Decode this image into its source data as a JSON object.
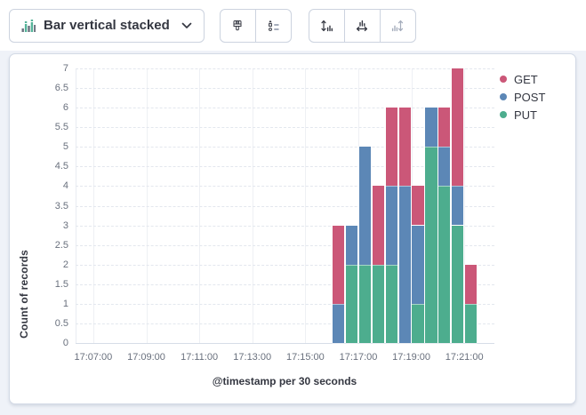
{
  "toolbar": {
    "chart_type_label": "Bar vertical stacked",
    "icons": {
      "switcher": "bar-vertical-stacked-icon",
      "chevron": "chevron-down-icon",
      "group1": [
        "paintbrush-icon",
        "legend-list-icon"
      ],
      "group2": [
        "left-axis-icon",
        "bottom-axis-icon",
        "right-axis-icon"
      ]
    }
  },
  "colors": {
    "get": "#cb5778",
    "post": "#5c87b6",
    "put": "#4dad8e",
    "icon_green": "#54b399",
    "icon_gray": "#69707d",
    "disabled_icon": "#a5adbc",
    "border": "#d3dae6",
    "tick_text": "#69707d",
    "title_text": "#343741"
  },
  "chart_data": {
    "type": "bar",
    "stacked": true,
    "orientation": "vertical",
    "title": "",
    "xlabel": "@timestamp per 30 seconds",
    "ylabel": "Count of records",
    "ylim": [
      0,
      7
    ],
    "grid": true,
    "legend_position": "right",
    "bucket_seconds": 30,
    "x": [
      "17:16:00",
      "17:16:30",
      "17:17:00",
      "17:17:30",
      "17:18:00",
      "17:18:30",
      "17:19:00",
      "17:19:30",
      "17:20:00",
      "17:20:30",
      "17:21:00"
    ],
    "series": [
      {
        "name": "GET",
        "color": "#cb5778",
        "values": [
          2,
          0,
          0,
          2,
          2,
          2,
          1,
          0,
          1,
          3,
          1
        ]
      },
      {
        "name": "POST",
        "color": "#5c87b6",
        "values": [
          1,
          1,
          3,
          0,
          2,
          4,
          2,
          1,
          1,
          1,
          0
        ]
      },
      {
        "name": "PUT",
        "color": "#4dad8e",
        "values": [
          0,
          2,
          2,
          2,
          2,
          0,
          1,
          5,
          4,
          3,
          1
        ]
      }
    ],
    "stack_order_bottom_to_top": [
      "PUT",
      "POST",
      "GET"
    ],
    "totals": [
      3,
      3,
      5,
      4,
      6,
      6,
      4,
      6,
      6,
      7,
      2
    ],
    "x_ticks": [
      "17:07:00",
      "17:09:00",
      "17:11:00",
      "17:13:00",
      "17:15:00",
      "17:17:00",
      "17:19:00",
      "17:21:00"
    ],
    "y_ticks": [
      "0",
      "0.5",
      "1",
      "1.5",
      "2",
      "2.5",
      "3",
      "3.5",
      "4",
      "4.5",
      "5",
      "5.5",
      "6",
      "6.5",
      "7"
    ]
  }
}
